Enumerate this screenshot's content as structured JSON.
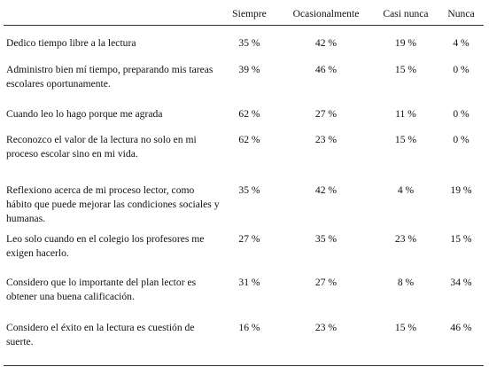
{
  "headers": [
    "",
    "Siempre",
    "Ocasionalmente",
    "Casi nunca",
    "Nunca"
  ],
  "rows": [
    {
      "statement": "Dedico tiempo libre a la lectura",
      "siempre": "35 %",
      "ocasionalmente": "42 %",
      "casi_nunca": "19 %",
      "nunca": "4 %"
    },
    {
      "statement": "Administro bien mí tiempo, preparando mis tareas escolares oportunamente.",
      "siempre": "39 %",
      "ocasionalmente": "46 %",
      "casi_nunca": "15 %",
      "nunca": "0 %"
    },
    {
      "statement": "Cuando leo lo hago porque me agrada",
      "siempre": "62 %",
      "ocasionalmente": "27 %",
      "casi_nunca": "11 %",
      "nunca": "0 %"
    },
    {
      "statement": "Reconozco el valor de la lectura no solo en mi proceso escolar sino en mi vida.",
      "siempre": "62 %",
      "ocasionalmente": "23 %",
      "casi_nunca": "15 %",
      "nunca": "0 %"
    },
    {
      "statement": "Reflexiono acerca de mi proceso lector, como hábito que puede mejorar las condiciones sociales y humanas.",
      "siempre": "35 %",
      "ocasionalmente": "42 %",
      "casi_nunca": "4 %",
      "nunca": "19 %"
    },
    {
      "statement": "Leo solo cuando en el colegio los profesores me exigen hacerlo.",
      "siempre": "27 %",
      "ocasionalmente": "35 %",
      "casi_nunca": "23 %",
      "nunca": "15 %"
    },
    {
      "statement": "Considero que lo importante del plan lector es obtener una buena calificación.",
      "siempre": "31 %",
      "ocasionalmente": "27 %",
      "casi_nunca": "8 %",
      "nunca": "34 %"
    },
    {
      "statement": "Considero el éxito en la lectura es cuestión de suerte.",
      "siempre": "16 %",
      "ocasionalmente": "23 %",
      "casi_nunca": "15 %",
      "nunca": "46 %"
    }
  ]
}
